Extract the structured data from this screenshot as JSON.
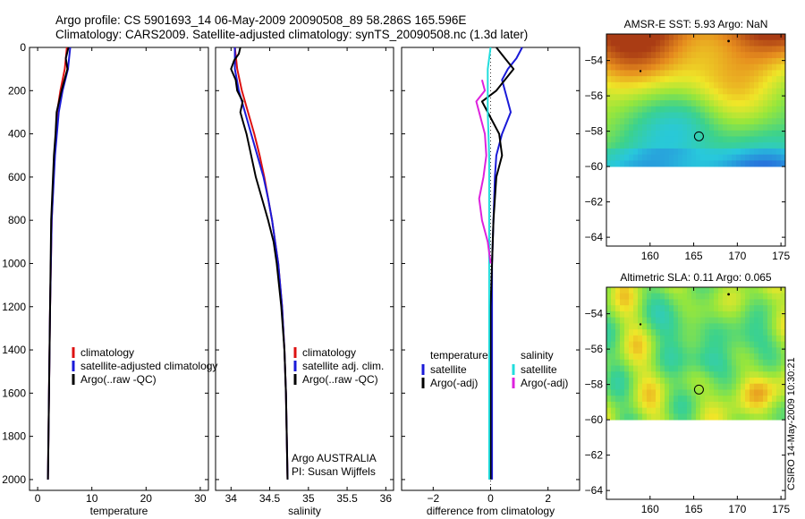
{
  "header": {
    "line1": "Argo profile: CS 5901693_14 06-May-2009 20090508_89 58.286S 165.596E",
    "line2": "Climatology: CARS2009. Satellite-adjusted climatology: synTS_20090508.nc (1.3d later)"
  },
  "footer": {
    "stamp": "CSIRO 14-May-2009 10:30:21"
  },
  "colors": {
    "clim": "#dd1111",
    "sat": "#1a1ad8",
    "argo": "#000000",
    "salsat": "#22dddd",
    "salargo": "#dd22dd"
  },
  "chart_data": [
    {
      "type": "line",
      "xlabel": "temperature",
      "ylim": [
        0,
        2050
      ],
      "xlim": [
        -1.5,
        31.5
      ],
      "xticks": [
        0,
        10,
        20,
        30
      ],
      "yticks": [
        0,
        200,
        400,
        600,
        800,
        1000,
        1200,
        1400,
        1600,
        1800,
        2000
      ],
      "legend": [
        "climatology",
        "satellite-adjusted climatology",
        "Argo(..raw -QC)"
      ],
      "series": [
        {
          "name": "climatology",
          "color": "#dd1111",
          "depth": [
            0,
            100,
            200,
            300,
            500,
            800,
            1200,
            1600,
            2000
          ],
          "values": [
            5.4,
            5.0,
            4.2,
            3.6,
            3.1,
            2.6,
            2.3,
            2.1,
            1.9
          ]
        },
        {
          "name": "satellite-adjusted climatology",
          "color": "#1a1ad8",
          "depth": [
            0,
            100,
            200,
            300,
            500,
            800,
            1200,
            1600,
            2000
          ],
          "values": [
            6.0,
            5.6,
            4.6,
            3.9,
            3.2,
            2.6,
            2.3,
            2.1,
            1.9
          ]
        },
        {
          "name": "Argo(..raw -QC)",
          "color": "#000000",
          "depth": [
            0,
            50,
            100,
            200,
            300,
            400,
            500,
            800,
            1200,
            1600,
            2000
          ],
          "values": [
            5.7,
            5.2,
            5.5,
            4.4,
            3.5,
            3.3,
            3.0,
            2.5,
            2.3,
            2.1,
            1.9
          ]
        }
      ]
    },
    {
      "type": "line",
      "xlabel": "salinity",
      "ylim": [
        0,
        2050
      ],
      "xlim": [
        33.8,
        36.1
      ],
      "xticks": [
        34,
        34.5,
        35,
        35.5,
        36
      ],
      "legend": [
        "climatology",
        "satellite adj. clim.",
        "Argo(..raw -QC)"
      ],
      "annotation": [
        "Argo AUSTRALIA",
        "PI: Susan Wijffels"
      ],
      "series": [
        {
          "name": "climatology",
          "color": "#dd1111",
          "depth": [
            0,
            100,
            200,
            300,
            400,
            500,
            600,
            700,
            800,
            900,
            1000,
            1200,
            1400,
            1600,
            1800,
            2000
          ],
          "values": [
            34.05,
            34.08,
            34.14,
            34.22,
            34.3,
            34.37,
            34.43,
            34.48,
            34.53,
            34.57,
            34.61,
            34.66,
            34.69,
            34.71,
            34.72,
            34.73
          ]
        },
        {
          "name": "satellite adj. clim.",
          "color": "#1a1ad8",
          "depth": [
            0,
            100,
            200,
            300,
            400,
            500,
            600,
            700,
            800,
            900,
            1000,
            1200,
            1400,
            1600,
            1800,
            2000
          ],
          "values": [
            34.05,
            34.05,
            34.1,
            34.18,
            34.26,
            34.34,
            34.42,
            34.48,
            34.53,
            34.57,
            34.61,
            34.66,
            34.69,
            34.71,
            34.72,
            34.73
          ]
        },
        {
          "name": "Argo(..raw -QC)",
          "color": "#000000",
          "depth": [
            0,
            30,
            60,
            100,
            150,
            200,
            250,
            300,
            350,
            400,
            500,
            600,
            700,
            800,
            900,
            1000,
            1200,
            1400,
            1600,
            1800,
            2000
          ],
          "values": [
            34.12,
            34.1,
            34.04,
            34.0,
            34.06,
            34.08,
            34.15,
            34.12,
            34.16,
            34.2,
            34.26,
            34.32,
            34.4,
            34.48,
            34.55,
            34.59,
            34.65,
            34.69,
            34.71,
            34.72,
            34.73
          ]
        }
      ]
    },
    {
      "type": "line",
      "xlabel": "difference from climatology",
      "ylim": [
        0,
        2050
      ],
      "xlim": [
        -3.1,
        3.1
      ],
      "xticks": [
        -2,
        0,
        2
      ],
      "legend_left_title": "temperature",
      "legend_right_title": "salinity",
      "legend_left": [
        "satellite",
        "Argo(-adj)"
      ],
      "legend_right": [
        "satellite",
        "Argo(-adj)"
      ],
      "series": [
        {
          "name": "temperature satellite",
          "color": "#1a1ad8",
          "depth": [
            0,
            50,
            100,
            150,
            200,
            250,
            300,
            400,
            500,
            600,
            800,
            1000,
            1200,
            1600,
            2000
          ],
          "values": [
            1.1,
            0.9,
            0.6,
            0.4,
            0.5,
            0.6,
            0.7,
            0.4,
            0.2,
            0.15,
            0.1,
            0.05,
            0.05,
            0.05,
            0.05
          ]
        },
        {
          "name": "temperature Argo(-adj)",
          "color": "#000000",
          "depth": [
            0,
            50,
            100,
            150,
            200,
            250,
            300,
            400,
            500,
            600,
            800,
            1000,
            1200,
            1600,
            2000
          ],
          "values": [
            0.2,
            0.5,
            0.8,
            0.5,
            0.2,
            -0.3,
            -0.1,
            0.3,
            0.4,
            0.2,
            0.1,
            0.05,
            0.0,
            0.0,
            0.0
          ]
        },
        {
          "name": "salinity satellite",
          "color": "#22dddd",
          "depth": [
            0,
            100,
            200,
            300,
            500,
            800,
            1200,
            2000
          ],
          "values": [
            0.0,
            -0.1,
            -0.1,
            -0.1,
            -0.05,
            -0.05,
            -0.05,
            -0.05
          ]
        },
        {
          "name": "salinity Argo(-adj)",
          "color": "#dd22dd",
          "depth": [
            150,
            200,
            250,
            300,
            400,
            500,
            600,
            700,
            800,
            900,
            1000
          ],
          "values": [
            -0.3,
            -0.2,
            -0.5,
            -0.4,
            -0.2,
            -0.15,
            -0.25,
            -0.4,
            -0.3,
            -0.1,
            0.0
          ]
        }
      ]
    },
    {
      "type": "heatmap",
      "title": "AMSR-E SST: 5.93 Argo: NaN",
      "xlim": [
        155,
        175.5
      ],
      "ylim": [
        -64.5,
        -52.5
      ],
      "xticks": [
        160,
        165,
        170,
        175
      ],
      "yticks": [
        -54,
        -56,
        -58,
        -60,
        -62,
        -64
      ],
      "marker": {
        "lon": 165.6,
        "lat": -58.29
      }
    },
    {
      "type": "heatmap",
      "title": "Altimetric SLA: 0.11 Argo: 0.065",
      "xlim": [
        155,
        175.5
      ],
      "ylim": [
        -64.5,
        -52.5
      ],
      "xticks": [
        160,
        165,
        170,
        175
      ],
      "yticks": [
        -54,
        -56,
        -58,
        -60,
        -62,
        -64
      ],
      "marker": {
        "lon": 165.6,
        "lat": -58.29
      }
    }
  ]
}
